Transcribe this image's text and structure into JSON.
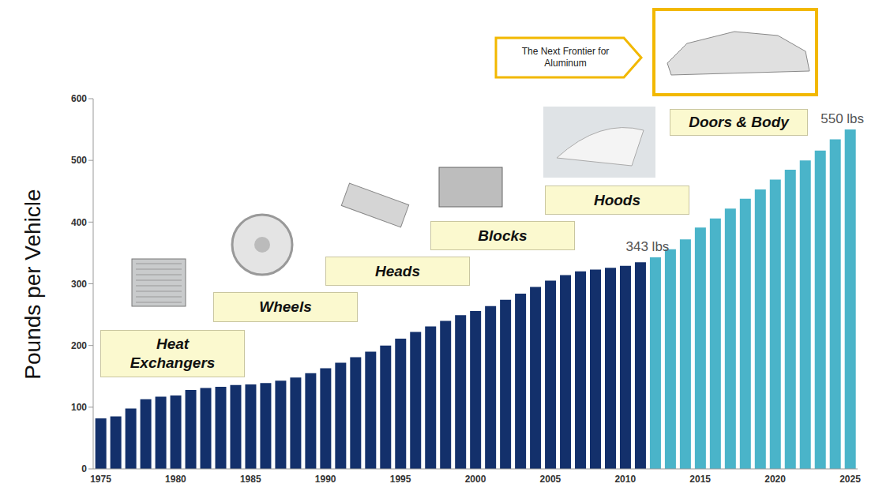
{
  "chart_data": {
    "type": "bar",
    "y_label": "Pounds per Vehicle",
    "categories": [
      "1975",
      null,
      null,
      null,
      null,
      "1980",
      null,
      null,
      null,
      null,
      "1985",
      null,
      null,
      null,
      null,
      "1990",
      null,
      null,
      null,
      null,
      "1995",
      null,
      null,
      null,
      null,
      "2000",
      null,
      null,
      null,
      null,
      "2005",
      null,
      null,
      null,
      null,
      "2010",
      null,
      null,
      null,
      null,
      "2015",
      null,
      null,
      null,
      null,
      "2020",
      null,
      null,
      null,
      null,
      "2025"
    ],
    "values": [
      82,
      85,
      98,
      113,
      117,
      119,
      128,
      131,
      133,
      136,
      137,
      139,
      143,
      148,
      155,
      163,
      172,
      181,
      190,
      200,
      211,
      222,
      231,
      240,
      249,
      256,
      264,
      274,
      284,
      295,
      305,
      314,
      320,
      323,
      326,
      329,
      335,
      343,
      356,
      372,
      391,
      406,
      422,
      438,
      453,
      469,
      485,
      500,
      516,
      534,
      550
    ],
    "value_labels": [
      null,
      null,
      null,
      null,
      null,
      null,
      null,
      null,
      null,
      null,
      null,
      null,
      null,
      null,
      null,
      null,
      null,
      null,
      null,
      null,
      null,
      null,
      null,
      null,
      null,
      null,
      null,
      null,
      null,
      null,
      null,
      null,
      null,
      null,
      null,
      null,
      null,
      "343 lbs",
      null,
      null,
      null,
      null,
      null,
      null,
      null,
      null,
      null,
      null,
      null,
      null,
      "550 lbs"
    ],
    "colors": [
      "#13306b",
      "#13306b",
      "#13306b",
      "#13306b",
      "#13306b",
      "#13306b",
      "#13306b",
      "#13306b",
      "#13306b",
      "#13306b",
      "#13306b",
      "#13306b",
      "#13306b",
      "#13306b",
      "#13306b",
      "#13306b",
      "#13306b",
      "#13306b",
      "#13306b",
      "#13306b",
      "#13306b",
      "#13306b",
      "#13306b",
      "#13306b",
      "#13306b",
      "#13306b",
      "#13306b",
      "#13306b",
      "#13306b",
      "#13306b",
      "#13306b",
      "#13306b",
      "#13306b",
      "#13306b",
      "#13306b",
      "#13306b",
      "#13306b",
      "#4ab4c9",
      "#4ab4c9",
      "#4ab4c9",
      "#4ab4c9",
      "#4ab4c9",
      "#4ab4c9",
      "#4ab4c9",
      "#4ab4c9",
      "#4ab4c9",
      "#4ab4c9",
      "#4ab4c9",
      "#4ab4c9",
      "#4ab4c9",
      "#4ab4c9"
    ],
    "ylim": [
      0,
      600
    ],
    "yticks": [
      0,
      100,
      200,
      300,
      400,
      500,
      600
    ],
    "grid": false,
    "annotations": [
      "Heat Exchangers",
      "Wheels",
      "Heads",
      "Blocks",
      "Hoods",
      "Doors & Body",
      "The Next Frontier for Aluminum"
    ]
  }
}
